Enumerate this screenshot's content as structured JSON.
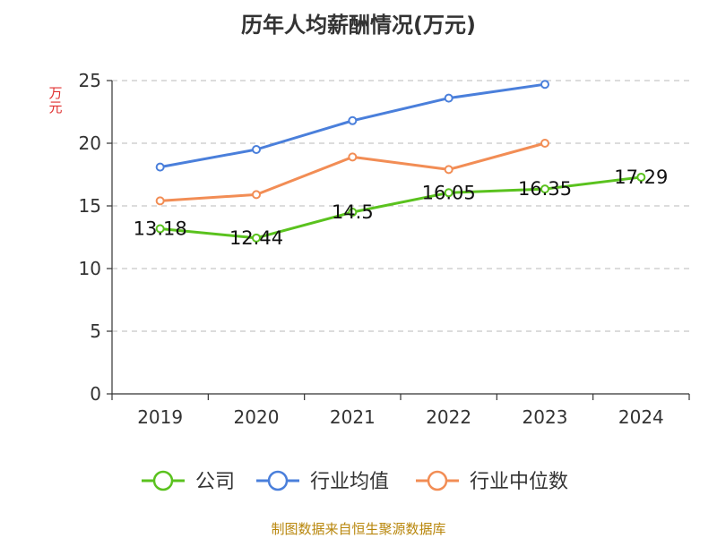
{
  "footer": "制图数据来自恒生聚源数据库",
  "chart_data": {
    "type": "line",
    "title": "历年人均薪酬情况(万元)",
    "ylabel": "万元",
    "xlabel": "",
    "categories": [
      "2019",
      "2020",
      "2021",
      "2022",
      "2023",
      "2024"
    ],
    "ylim": [
      0,
      25
    ],
    "yticks": [
      0,
      5,
      10,
      15,
      20,
      25
    ],
    "grid": true,
    "legend_position": "bottom",
    "series": [
      {
        "name": "公司",
        "color": "#5ac21e",
        "values": [
          13.18,
          12.44,
          14.5,
          16.05,
          16.35,
          17.29
        ],
        "labels": [
          "13.18",
          "12.44",
          "14.5",
          "16.05",
          "16.35",
          "17.29"
        ]
      },
      {
        "name": "行业均值",
        "color": "#4a7fdb",
        "values": [
          18.1,
          19.5,
          21.8,
          23.6,
          24.7,
          null
        ]
      },
      {
        "name": "行业中位数",
        "color": "#f28d55",
        "values": [
          15.4,
          15.9,
          18.9,
          17.9,
          20.0,
          null
        ]
      }
    ]
  }
}
